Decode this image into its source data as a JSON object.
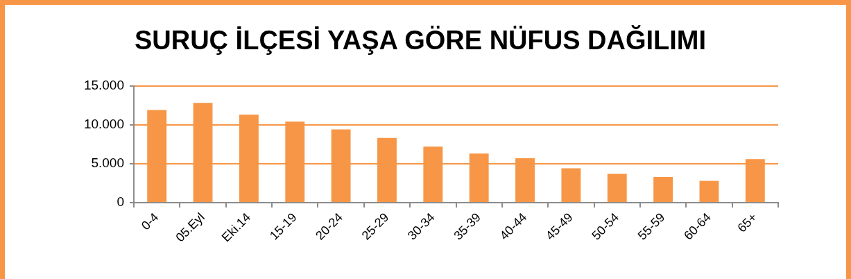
{
  "chart_data": {
    "type": "bar",
    "title": "SURUÇ İLÇESİ YAŞA GÖRE NÜFUS DAĞILIMI",
    "categories": [
      "0-4",
      "05.Eyl",
      "Eki.14",
      "15-19",
      "20-24",
      "25-29",
      "30-34",
      "35-39",
      "40-44",
      "45-49",
      "50-54",
      "55-59",
      "60-64",
      "65+"
    ],
    "values": [
      11900,
      12800,
      11300,
      10400,
      9400,
      8300,
      7200,
      6300,
      5700,
      4400,
      3700,
      3300,
      2800,
      5600
    ],
    "color": "#f79646",
    "ylim": [
      0,
      15000
    ],
    "yticks": [
      0,
      {
        "value": 5000,
        "label": "5.000"
      },
      {
        "value": 10000,
        "label": "10.000"
      },
      {
        "value": 15000,
        "label": "15.000"
      }
    ],
    "grid": "y"
  }
}
